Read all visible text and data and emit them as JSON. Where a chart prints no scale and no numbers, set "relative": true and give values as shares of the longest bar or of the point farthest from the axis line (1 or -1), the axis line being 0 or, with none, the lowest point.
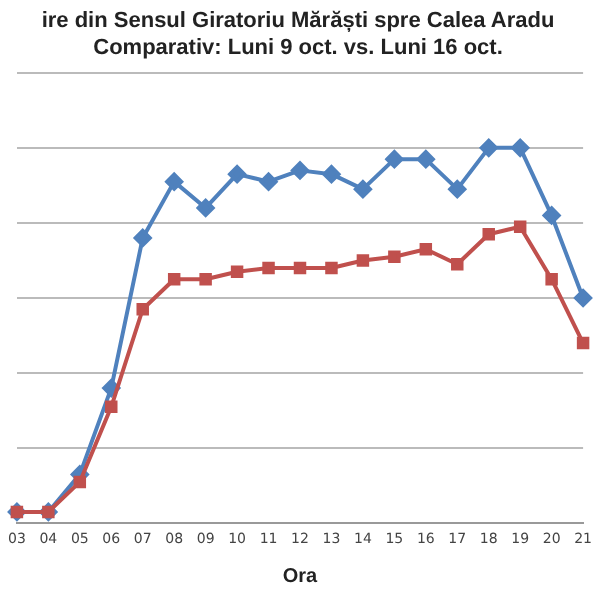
{
  "chart_data": {
    "type": "line",
    "title": [
      "ire din Sensul Giratoriu Mărăști spre Calea Aradu",
      "Comparativ: Luni 9 oct. vs. Luni 16 oct."
    ],
    "xlabel": "Ora",
    "relative": true,
    "grid": "y",
    "legend": false,
    "categories": [
      "03",
      "04",
      "05",
      "06",
      "07",
      "08",
      "09",
      "10",
      "11",
      "12",
      "13",
      "14",
      "15",
      "16",
      "17",
      "18",
      "19",
      "20",
      "21"
    ],
    "series": [
      {
        "color": "#4f81bd",
        "marker": "diamond",
        "values": [
          0.03,
          0.03,
          0.13,
          0.36,
          0.76,
          0.91,
          0.84,
          0.93,
          0.91,
          0.94,
          0.93,
          0.89,
          0.97,
          0.97,
          0.89,
          1,
          1,
          0.82,
          0.6
        ]
      },
      {
        "color": "#c0504d",
        "marker": "square",
        "values": [
          0.03,
          0.03,
          0.11,
          0.31,
          0.57,
          0.65,
          0.65,
          0.67,
          0.68,
          0.68,
          0.68,
          0.7,
          0.71,
          0.73,
          0.69,
          0.77,
          0.79,
          0.65,
          0.48
        ]
      }
    ]
  }
}
